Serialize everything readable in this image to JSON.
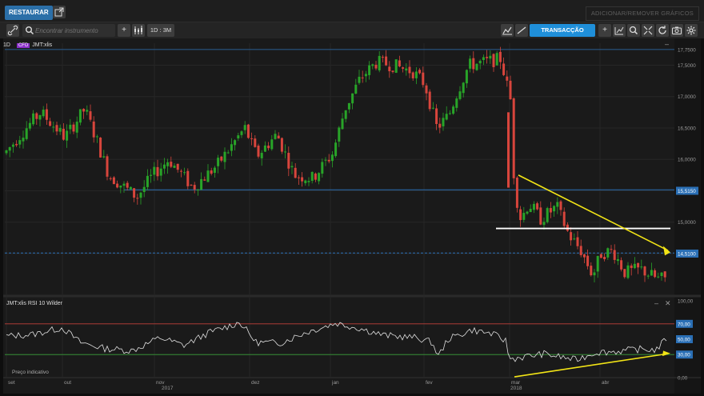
{
  "topbar": {
    "restore_label": "RESTAURAR",
    "add_remove_label": "ADICIONAR/REMOVER GRÁFICOS"
  },
  "toolbar": {
    "search_placeholder": "Encontrar instrumento",
    "interval_label": "1D : 3M",
    "trade_label": "TRANSACÇÃO"
  },
  "price_panel": {
    "timeframe": "1D",
    "instrument_badge": "CFD",
    "instrument": "JMT:xlis"
  },
  "rsi_panel": {
    "label": "JMT:xlis  RSI 10 Wilder",
    "indicator_note": "Preço indicativo"
  },
  "colors": {
    "up": "#28a428",
    "down": "#d8453c",
    "level_line": "#2a6fb5",
    "trend_line": "#f2e416",
    "support_line": "#ffffff",
    "accent": "#1f8fd9"
  },
  "chart_data": [
    {
      "type": "candlestick",
      "instrument": "JMT:xlis",
      "y_ticks": [
        17.75,
        17.5,
        17.0,
        16.5,
        16.0,
        15.5,
        15.0,
        14.5
      ],
      "y_tick_labels": [
        "17,7500",
        "17,5000",
        "17,0000",
        "16,5000",
        "16,0000",
        "15,5150",
        "15,0000",
        "14,5100"
      ],
      "ylim": [
        13.85,
        17.85
      ],
      "current_price_label": "14,5100",
      "current_price": 14.51,
      "levels": [
        15.515,
        14.51
      ],
      "support_line": 14.9,
      "trend_line": {
        "from": [
          "mid-Mar 2018",
          15.7
        ],
        "to": [
          "mid-Apr 2018",
          14.51
        ]
      },
      "x_tick_labels": [
        "set",
        "out",
        "nov",
        "dez",
        "jan",
        "fev",
        "mar",
        "abr"
      ],
      "year_labels": [
        "2017",
        "2018"
      ]
    },
    {
      "type": "line",
      "name": "RSI 10 Wilder",
      "ylim": [
        0,
        100
      ],
      "y_tick_labels": [
        "100,00",
        "70,00",
        "50,00",
        "30,00",
        "0,00"
      ],
      "reference_lines": [
        70,
        30
      ],
      "last_value_label": "50,00",
      "trend_line": {
        "from": [
          "Mar 2018",
          1
        ],
        "to": [
          "end Apr 2018",
          31
        ]
      }
    }
  ]
}
